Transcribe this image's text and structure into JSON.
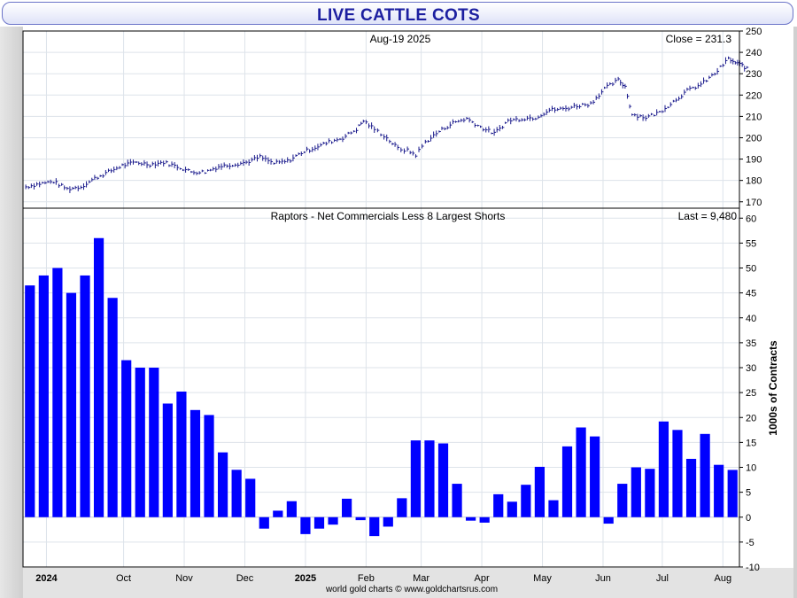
{
  "header": {
    "title": "LIVE CATTLE COTS"
  },
  "footer": {
    "credit": "world gold charts © www.goldchartsrus.com"
  },
  "colors": {
    "price_bars": "#1a1a8c",
    "cot_bars": "#0000ff",
    "title": "#1c1fa0",
    "grid": "#dde3ea"
  },
  "x_axis": {
    "labels": [
      {
        "text": "2024",
        "bold": true,
        "week": 1.2
      },
      {
        "text": "Oct",
        "bold": false,
        "week": 6.8
      },
      {
        "text": "Nov",
        "bold": false,
        "week": 11.2
      },
      {
        "text": "Dec",
        "bold": false,
        "week": 15.6
      },
      {
        "text": "2025",
        "bold": true,
        "week": 20
      },
      {
        "text": "Feb",
        "bold": false,
        "week": 24.4
      },
      {
        "text": "Mar",
        "bold": false,
        "week": 28.4
      },
      {
        "text": "Apr",
        "bold": false,
        "week": 32.8
      },
      {
        "text": "May",
        "bold": false,
        "week": 37.2
      },
      {
        "text": "Jun",
        "bold": false,
        "week": 41.6
      },
      {
        "text": "Jul",
        "bold": false,
        "week": 45.9
      },
      {
        "text": "Aug",
        "bold": false,
        "week": 50.3
      }
    ]
  },
  "chart_data": [
    {
      "type": "line",
      "title": "Aug-19  2025",
      "readout": "Close = 231.3",
      "ylim": [
        167,
        250
      ],
      "yticks": [
        170,
        180,
        190,
        200,
        210,
        220,
        230,
        240,
        250
      ],
      "grid": true,
      "x_unit": "weeks",
      "points": [
        [
          0.0,
          177
        ],
        [
          1.0,
          178.5
        ],
        [
          2.0,
          179.5
        ],
        [
          3.0,
          176
        ],
        [
          4.0,
          177
        ],
        [
          5.0,
          181
        ],
        [
          6.0,
          184
        ],
        [
          7.0,
          187
        ],
        [
          8.0,
          188.5
        ],
        [
          9.0,
          187.5
        ],
        [
          10.0,
          188.5
        ],
        [
          11.0,
          186.5
        ],
        [
          12.0,
          184
        ],
        [
          13.0,
          184
        ],
        [
          14.0,
          186.5
        ],
        [
          15.0,
          187.5
        ],
        [
          16.0,
          188.5
        ],
        [
          17.0,
          191
        ],
        [
          18.0,
          188
        ],
        [
          19.0,
          189
        ],
        [
          20.0,
          193
        ],
        [
          21.0,
          195.5
        ],
        [
          22.0,
          198
        ],
        [
          23.0,
          200
        ],
        [
          24.0,
          204
        ],
        [
          24.5,
          208
        ],
        [
          25.3,
          204
        ],
        [
          26.0,
          201
        ],
        [
          27.0,
          195
        ],
        [
          27.7,
          194
        ],
        [
          28.3,
          192
        ],
        [
          29.0,
          198
        ],
        [
          30.0,
          203
        ],
        [
          31.0,
          207
        ],
        [
          32.0,
          209
        ],
        [
          33.0,
          205
        ],
        [
          34.0,
          202
        ],
        [
          35.0,
          208
        ],
        [
          36.0,
          209
        ],
        [
          37.0,
          209.5
        ],
        [
          38.0,
          213
        ],
        [
          39.0,
          213.5
        ],
        [
          40.0,
          215
        ],
        [
          41.0,
          216
        ],
        [
          42.0,
          223
        ],
        [
          43.0,
          227
        ],
        [
          43.5,
          224
        ],
        [
          44.0,
          211
        ],
        [
          45.0,
          209.5
        ],
        [
          46.0,
          212
        ],
        [
          47.0,
          217
        ],
        [
          48.0,
          222
        ],
        [
          49.0,
          225
        ],
        [
          50.0,
          230
        ],
        [
          51.0,
          237
        ],
        [
          51.5,
          235
        ],
        [
          52.0,
          234
        ],
        [
          52.5,
          231.3
        ]
      ]
    },
    {
      "type": "bar",
      "title": "Raptors - Net Commercials Less 8 Largest Shorts",
      "readout": "Last = 9,480",
      "ylabel": "1000s of Contracts",
      "ylim": [
        -10,
        62
      ],
      "yticks": [
        -10,
        -5,
        0,
        5,
        10,
        15,
        20,
        25,
        30,
        35,
        40,
        45,
        50,
        55,
        60
      ],
      "grid": true,
      "values": [
        46.5,
        48.5,
        50,
        45,
        48.5,
        56,
        44,
        31.5,
        30,
        30,
        22.8,
        25.2,
        21.5,
        20.5,
        13,
        9.5,
        7.7,
        -2.3,
        1.3,
        3.2,
        -3.4,
        -2.3,
        -1.5,
        3.7,
        -0.6,
        -3.8,
        -1.9,
        3.8,
        15.4,
        15.4,
        14.8,
        6.7,
        -0.7,
        -1.1,
        4.6,
        3.1,
        6.5,
        10.1,
        3.4,
        14.2,
        18,
        16.2,
        -1.3,
        6.7,
        10,
        9.7,
        19.2,
        17.5,
        11.7,
        16.7,
        10.5,
        9.48
      ]
    }
  ]
}
